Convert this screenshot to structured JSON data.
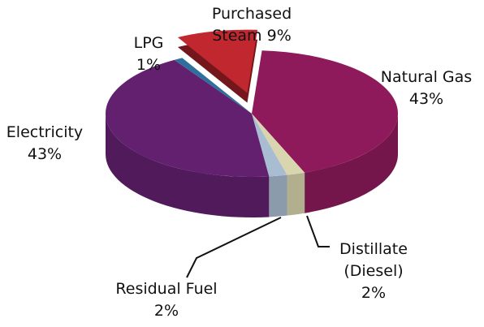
{
  "chart_data": {
    "type": "pie",
    "categories": [
      "Natural Gas",
      "Distillate (Diesel)",
      "Residual Fuel",
      "Electricity",
      "LPG",
      "Purchased Steam"
    ],
    "values": [
      43,
      2,
      2,
      43,
      1,
      9
    ],
    "value_labels": [
      "43%",
      "2%",
      "2%",
      "43%",
      "1%",
      "9%"
    ],
    "colors": [
      "#8e1a5c",
      "#d9d5ae",
      "#a9bdd2",
      "#62206f",
      "#2f6f9c",
      "#c1272f"
    ]
  }
}
